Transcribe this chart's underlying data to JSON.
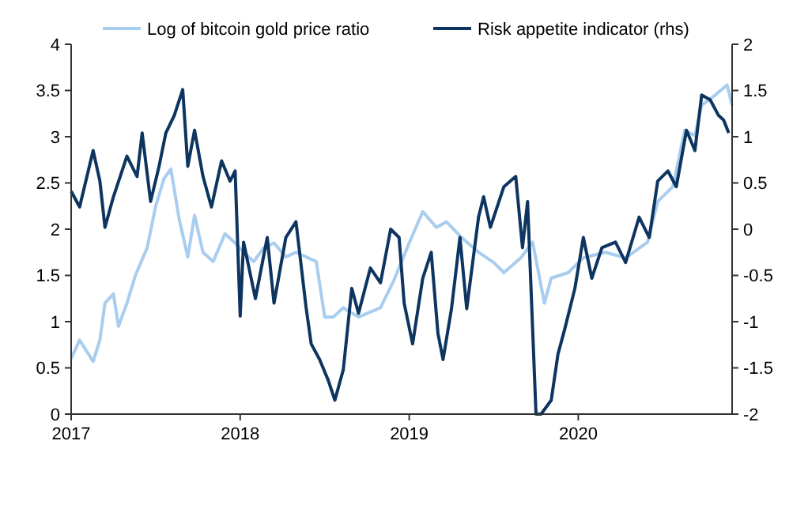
{
  "chart_data": {
    "type": "line",
    "xlim": [
      2017,
      2020.91
    ],
    "xticks": [
      2017,
      2018,
      2019,
      2020
    ],
    "ylim": [
      0,
      4
    ],
    "yticks": [
      0,
      0.5,
      1,
      1.5,
      2,
      2.5,
      3,
      3.5,
      4
    ],
    "y2lim": [
      -2,
      2
    ],
    "y2ticks": [
      -2,
      -1.5,
      -1,
      -0.5,
      0,
      0.5,
      1,
      1.5,
      2
    ],
    "legend": "top",
    "grid": false,
    "line_style": "solid",
    "series": [
      {
        "name": "Log of bitcoin gold price ratio",
        "color": "#a9cdee",
        "x": [
          2017.0,
          2017.05,
          2017.13,
          2017.17,
          2017.2,
          2017.25,
          2017.28,
          2017.33,
          2017.38,
          2017.45,
          2017.5,
          2017.55,
          2017.59,
          2017.64,
          2017.69,
          2017.73,
          2017.78,
          2017.84,
          2017.91,
          2017.97,
          2018.02,
          2018.08,
          2018.14,
          2018.2,
          2018.27,
          2018.33,
          2018.39,
          2018.45,
          2018.5,
          2018.55,
          2018.61,
          2018.7,
          2018.83,
          2018.91,
          2019.0,
          2019.08,
          2019.16,
          2019.22,
          2019.31,
          2019.41,
          2019.5,
          2019.56,
          2019.66,
          2019.73,
          2019.8,
          2019.84,
          2019.94,
          2020.03,
          2020.16,
          2020.28,
          2020.41,
          2020.47,
          2020.56,
          2020.63,
          2020.69,
          2020.73,
          2020.81,
          2020.88,
          2020.91
        ],
        "values": [
          0.6,
          0.8,
          0.57,
          0.8,
          1.2,
          1.3,
          0.95,
          1.2,
          1.5,
          1.8,
          2.25,
          2.55,
          2.65,
          2.1,
          1.7,
          2.15,
          1.75,
          1.65,
          1.95,
          1.85,
          1.75,
          1.65,
          1.8,
          1.85,
          1.7,
          1.75,
          1.7,
          1.65,
          1.05,
          1.05,
          1.15,
          1.05,
          1.15,
          1.45,
          1.85,
          2.19,
          2.02,
          2.08,
          1.91,
          1.75,
          1.64,
          1.53,
          1.69,
          1.86,
          1.2,
          1.47,
          1.53,
          1.69,
          1.75,
          1.69,
          1.86,
          2.3,
          2.46,
          3.07,
          3.01,
          3.34,
          3.45,
          3.56,
          3.34
        ]
      },
      {
        "name": "Risk appetite indicator (rhs)",
        "color": "#0d3560",
        "axis": "y2",
        "x": [
          2017.0,
          2017.05,
          2017.13,
          2017.17,
          2017.2,
          2017.25,
          2017.33,
          2017.39,
          2017.42,
          2017.47,
          2017.52,
          2017.56,
          2017.61,
          2017.66,
          2017.69,
          2017.73,
          2017.78,
          2017.83,
          2017.89,
          2017.94,
          2017.97,
          2018.0,
          2018.02,
          2018.09,
          2018.16,
          2018.2,
          2018.27,
          2018.33,
          2018.39,
          2018.42,
          2018.47,
          2018.52,
          2018.56,
          2018.61,
          2018.66,
          2018.7,
          2018.77,
          2018.83,
          2018.89,
          2018.94,
          2018.97,
          2019.02,
          2019.08,
          2019.13,
          2019.17,
          2019.2,
          2019.25,
          2019.3,
          2019.34,
          2019.41,
          2019.44,
          2019.48,
          2019.56,
          2019.63,
          2019.67,
          2019.7,
          2019.75,
          2019.78,
          2019.84,
          2019.88,
          2019.92,
          2019.98,
          2020.03,
          2020.08,
          2020.14,
          2020.22,
          2020.28,
          2020.36,
          2020.42,
          2020.47,
          2020.53,
          2020.58,
          2020.64,
          2020.69,
          2020.73,
          2020.78,
          2020.83,
          2020.86,
          2020.89
        ],
        "values": [
          0.41,
          0.24,
          0.85,
          0.52,
          0.02,
          0.35,
          0.79,
          0.57,
          1.04,
          0.3,
          0.68,
          1.04,
          1.23,
          1.51,
          0.68,
          1.07,
          0.57,
          0.24,
          0.74,
          0.52,
          0.63,
          -0.94,
          -0.14,
          -0.75,
          -0.09,
          -0.8,
          -0.09,
          0.08,
          -0.85,
          -1.24,
          -1.41,
          -1.63,
          -1.85,
          -1.52,
          -0.64,
          -0.91,
          -0.42,
          -0.58,
          0,
          -0.09,
          -0.8,
          -1.24,
          -0.53,
          -0.25,
          -1.13,
          -1.41,
          -0.86,
          -0.09,
          -0.86,
          0.13,
          0.35,
          0.02,
          0.46,
          0.57,
          -0.2,
          0.3,
          -2,
          -2,
          -1.85,
          -1.35,
          -1.08,
          -0.64,
          -0.09,
          -0.53,
          -0.2,
          -0.14,
          -0.36,
          0.13,
          -0.09,
          0.52,
          0.63,
          0.46,
          1.07,
          0.85,
          1.45,
          1.4,
          1.23,
          1.18,
          1.04
        ]
      }
    ]
  }
}
